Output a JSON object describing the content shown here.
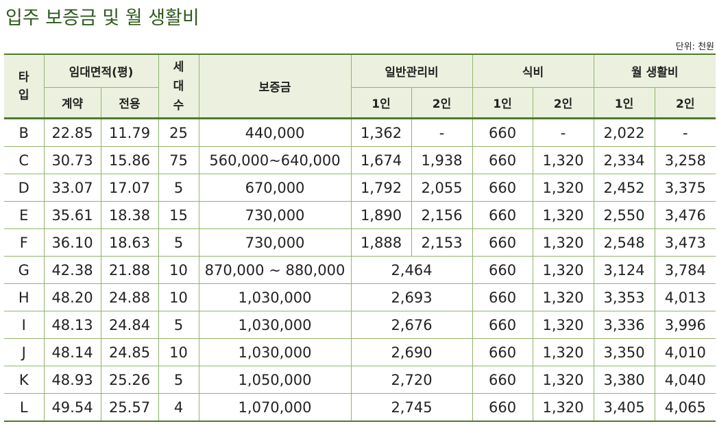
{
  "title": "입주 보증금 및 월 생활비",
  "unit_note": "단위: 천원",
  "headers": {
    "type": [
      "타",
      "입"
    ],
    "area": "임대면적(평)",
    "households": [
      "세",
      "대",
      "수"
    ],
    "deposit": "보증금",
    "mgmt": "일반관리비",
    "meal": "식비",
    "living": "월 생활비",
    "contract": "계약",
    "exclusive": "전용",
    "one": "1인",
    "two": "2인"
  },
  "rows": [
    {
      "type": "B",
      "contract": "22.85",
      "exclusive": "11.79",
      "households": "25",
      "deposit": "440,000",
      "mgmt1": "1,362",
      "mgmt2": "-",
      "meal1": "660",
      "meal2": "-",
      "living1": "2,022",
      "living2": "-"
    },
    {
      "type": "C",
      "contract": "30.73",
      "exclusive": "15.86",
      "households": "75",
      "deposit": "560,000~640,000",
      "mgmt1": "1,674",
      "mgmt2": "1,938",
      "meal1": "660",
      "meal2": "1,320",
      "living1": "2,334",
      "living2": "3,258"
    },
    {
      "type": "D",
      "contract": "33.07",
      "exclusive": "17.07",
      "households": "5",
      "deposit": "670,000",
      "mgmt1": "1,792",
      "mgmt2": "2,055",
      "meal1": "660",
      "meal2": "1,320",
      "living1": "2,452",
      "living2": "3,375"
    },
    {
      "type": "E",
      "contract": "35.61",
      "exclusive": "18.38",
      "households": "15",
      "deposit": "730,000",
      "mgmt1": "1,890",
      "mgmt2": "2,156",
      "meal1": "660",
      "meal2": "1,320",
      "living1": "2,550",
      "living2": "3,476"
    },
    {
      "type": "F",
      "contract": "36.10",
      "exclusive": "18.63",
      "households": "5",
      "deposit": "730,000",
      "mgmt1": "1,888",
      "mgmt2": "2,153",
      "meal1": "660",
      "meal2": "1,320",
      "living1": "2,548",
      "living2": "3,473"
    },
    {
      "type": "G",
      "contract": "42.38",
      "exclusive": "21.88",
      "households": "10",
      "deposit": "870,000 ~ 880,000",
      "mgmt": "2,464",
      "meal1": "660",
      "meal2": "1,320",
      "living1": "3,124",
      "living2": "3,784"
    },
    {
      "type": "H",
      "contract": "48.20",
      "exclusive": "24.88",
      "households": "10",
      "deposit": "1,030,000",
      "mgmt": "2,693",
      "meal1": "660",
      "meal2": "1,320",
      "living1": "3,353",
      "living2": "4,013"
    },
    {
      "type": "I",
      "contract": "48.13",
      "exclusive": "24.84",
      "households": "5",
      "deposit": "1,030,000",
      "mgmt": "2,676",
      "meal1": "660",
      "meal2": "1,320",
      "living1": "3,336",
      "living2": "3,996"
    },
    {
      "type": "J",
      "contract": "48.14",
      "exclusive": "24.85",
      "households": "10",
      "deposit": "1,030,000",
      "mgmt": "2,690",
      "meal1": "660",
      "meal2": "1,320",
      "living1": "3,350",
      "living2": "4,010"
    },
    {
      "type": "K",
      "contract": "48.93",
      "exclusive": "25.26",
      "households": "5",
      "deposit": "1,050,000",
      "mgmt": "2,720",
      "meal1": "660",
      "meal2": "1,320",
      "living1": "3,380",
      "living2": "4,040"
    },
    {
      "type": "L",
      "contract": "49.54",
      "exclusive": "25.57",
      "households": "4",
      "deposit": "1,070,000",
      "mgmt": "2,745",
      "meal1": "660",
      "meal2": "1,320",
      "living1": "3,405",
      "living2": "4,065"
    }
  ]
}
